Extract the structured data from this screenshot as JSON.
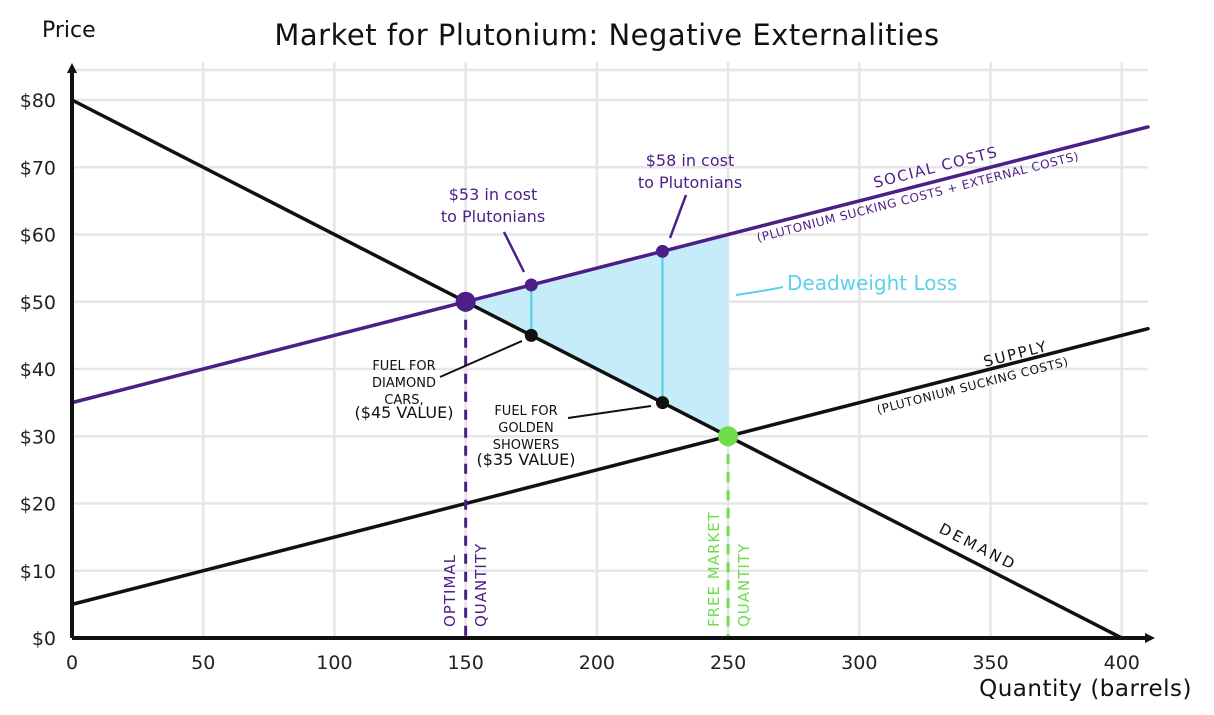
{
  "chart_data": {
    "type": "line",
    "title": "Market for Plutonium: Negative Externalities",
    "xlabel": "Quantity (barrels)",
    "ylabel": "Price",
    "xlim": [
      0,
      410
    ],
    "ylim": [
      0,
      80
    ],
    "x_ticks": [
      0,
      50,
      100,
      150,
      200,
      250,
      300,
      350,
      400
    ],
    "y_ticks": [
      0,
      10,
      20,
      30,
      40,
      50,
      60,
      70,
      80
    ],
    "x_tick_labels": [
      "0",
      "50",
      "100",
      "150",
      "200",
      "250",
      "300",
      "350",
      "400"
    ],
    "y_tick_labels": [
      "$0",
      "$10",
      "$20",
      "$30",
      "$40",
      "$50",
      "$60",
      "$70",
      "$80"
    ],
    "grid": true,
    "colors": {
      "demand": "#111111",
      "supply": "#111111",
      "social_costs": "#4b1f86",
      "deadweight_fill": "#bfeaf7",
      "deadweight_label": "#5fd0ea",
      "free_market": "#6fdc4c"
    },
    "series": [
      {
        "name": "Demand",
        "label": "DEMAND",
        "x": [
          0,
          400
        ],
        "y": [
          80,
          0
        ]
      },
      {
        "name": "Supply",
        "label": "SUPPLY",
        "sublabel": "(PLUTONIUM SUCKING COSTS)",
        "x": [
          0,
          410
        ],
        "y": [
          5,
          46
        ]
      },
      {
        "name": "Social costs",
        "label": "SOCIAL COSTS",
        "sublabel": "(PLUTONIUM SUCKING COSTS + EXTERNAL COSTS)",
        "x": [
          0,
          410
        ],
        "y": [
          35,
          76
        ]
      }
    ],
    "deadweight_loss": {
      "label": "Deadweight Loss",
      "vertices": [
        [
          150,
          50
        ],
        [
          250,
          60
        ],
        [
          250,
          30
        ]
      ]
    },
    "points": [
      {
        "name": "optimum",
        "x": 150,
        "y": 50,
        "color": "#4b1f86",
        "size": "large"
      },
      {
        "name": "free-market-equilibrium",
        "x": 250,
        "y": 30,
        "color": "#6fdc4c",
        "size": "large"
      },
      {
        "name": "social-cost-175",
        "x": 175,
        "y": 52.5,
        "color": "#4b1f86",
        "size": "small"
      },
      {
        "name": "social-cost-225",
        "x": 225,
        "y": 57.5,
        "color": "#4b1f86",
        "size": "small"
      },
      {
        "name": "demand-175",
        "x": 175,
        "y": 45,
        "color": "#111111",
        "size": "small"
      },
      {
        "name": "demand-225",
        "x": 225,
        "y": 35,
        "color": "#111111",
        "size": "small"
      }
    ],
    "vertical_lines": [
      {
        "name": "optimal-quantity",
        "x": 150,
        "label": [
          "OPTIMAL",
          "QUANTITY"
        ],
        "color": "#4b1f86"
      },
      {
        "name": "free-market-quantity",
        "x": 250,
        "label": [
          "FREE MARKET",
          "QUANTITY"
        ],
        "color": "#6fdc4c"
      }
    ],
    "annotations": {
      "cost_53": [
        "$53 in cost",
        "to Plutonians"
      ],
      "cost_58": [
        "$58 in cost",
        "to Plutonians"
      ],
      "fuel_45": [
        "FUEL FOR",
        "DIAMOND",
        "CARS,",
        "($45 VALUE)"
      ],
      "fuel_35": [
        "FUEL FOR",
        "GOLDEN",
        "SHOWERS",
        "($35 VALUE)"
      ]
    }
  }
}
